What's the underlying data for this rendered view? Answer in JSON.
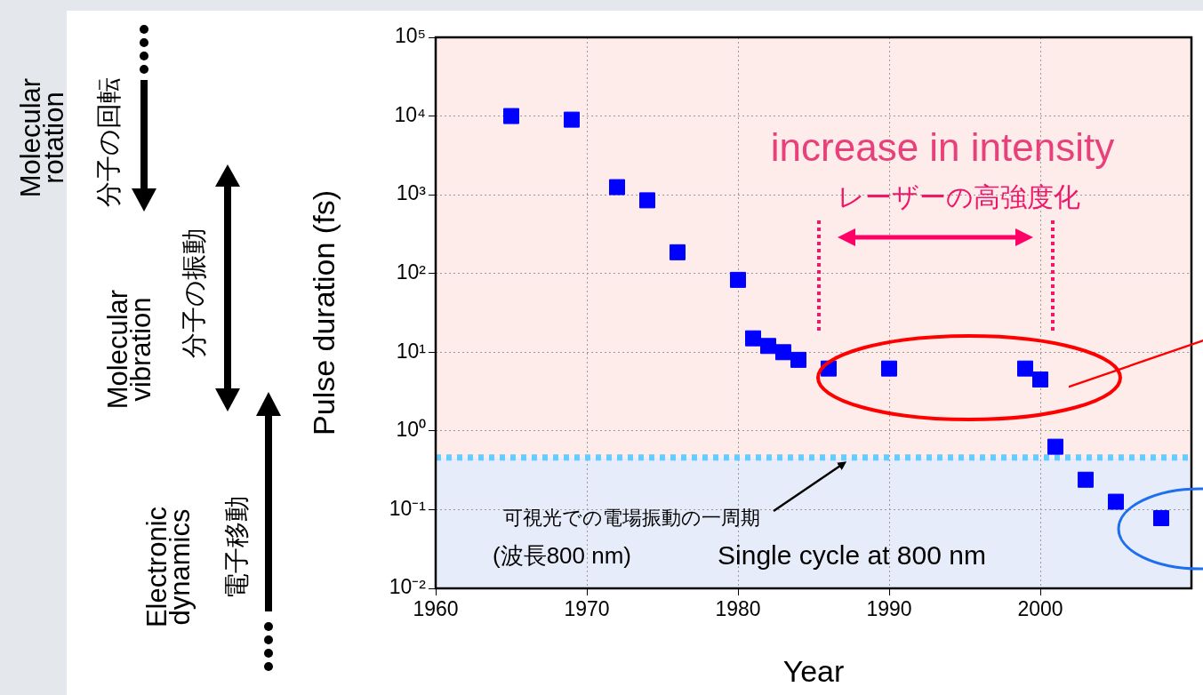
{
  "chart_data": {
    "type": "scatter",
    "xlabel": "Year",
    "ylabel": "Pulse duration (fs)",
    "x": [
      1965,
      1969,
      1972,
      1974,
      1976,
      1980,
      1981,
      1982,
      1983,
      1984,
      1986,
      1990,
      1999,
      2000,
      2001,
      2003,
      2005,
      2008
    ],
    "series": [
      {
        "color": "#0000ff",
        "values": [
          10000,
          9000,
          1250,
          850,
          186,
          83,
          15,
          12,
          10,
          8,
          6.2,
          6.2,
          6.2,
          4.5,
          0.63,
          0.24,
          0.126,
          0.078
        ]
      }
    ],
    "xlim": [
      1960,
      2010
    ],
    "xticks": [
      1960,
      1970,
      1980,
      1990,
      2000
    ],
    "ylim": [
      0.01,
      100000
    ],
    "yticks": [
      {
        "value": 0.01,
        "label": "10⁻²"
      },
      {
        "value": 0.1,
        "label": "10⁻¹"
      },
      {
        "value": 1,
        "label": "10⁰"
      },
      {
        "value": 10,
        "label": "10¹"
      },
      {
        "value": 100,
        "label": "10²"
      },
      {
        "value": 1000,
        "label": "10³"
      },
      {
        "value": 10000,
        "label": "10⁴"
      },
      {
        "value": 100000,
        "label": "10⁵"
      }
    ],
    "log": "y",
    "grid": true,
    "marker": "square",
    "bands": [
      {
        "axis": "y",
        "from": 0.46,
        "to": 100000,
        "color": "#fdecea"
      },
      {
        "axis": "y",
        "from": 0.01,
        "to": 0.46,
        "color": "#e6ecfa"
      }
    ],
    "ref_lines": [
      {
        "axis": "y",
        "value": 0.46,
        "color": "#66ccff",
        "line_style": "dotted"
      }
    ],
    "annotations": [
      "increase in intensity",
      "レーザーの高強度化",
      "可視光での電場振動の一周期",
      "(波長800 nm)",
      "Single cycle at 800 nm",
      "Molecular rotation",
      "分子の回転",
      "Molecular vibration",
      "分子の振動",
      "Electronic dynamics",
      "電子移動"
    ]
  }
}
